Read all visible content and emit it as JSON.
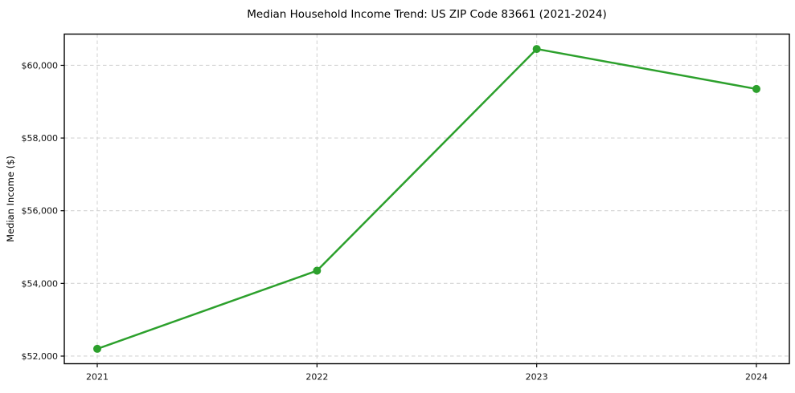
{
  "chart_data": {
    "type": "line",
    "title": "Median Household Income Trend: US ZIP Code 83661 (2021-2024)",
    "xlabel": "",
    "ylabel": "Median Income ($)",
    "categories": [
      "2021",
      "2022",
      "2023",
      "2024"
    ],
    "x": [
      2021,
      2022,
      2023,
      2024
    ],
    "values": [
      52200,
      54350,
      60450,
      59350
    ],
    "yticks": [
      52000,
      54000,
      56000,
      58000,
      60000
    ],
    "ytick_labels": [
      "$52,000",
      "$54,000",
      "$56,000",
      "$58,000",
      "$60,000"
    ],
    "xlim": [
      2020.85,
      2024.15
    ],
    "ylim": [
      51790,
      60860
    ],
    "grid": true,
    "legend_position": "none",
    "marker": "circle",
    "colors": {
      "line": "#2ca02c",
      "marker": "#2ca02c",
      "grid": "#d4d4d4",
      "spine": "#000000",
      "text": "#111111",
      "background": "#ffffff"
    }
  }
}
